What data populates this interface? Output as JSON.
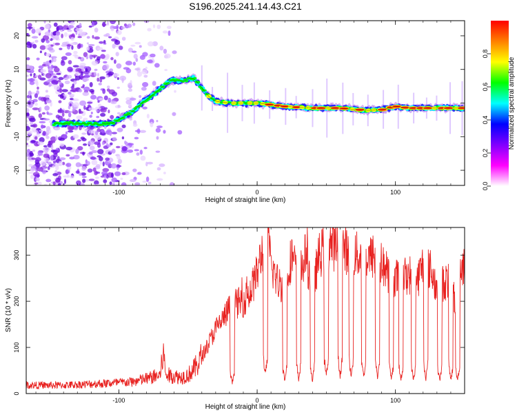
{
  "title": "S196.2025.241.14.43.C21",
  "colors": {
    "snr_line": "#e8211f",
    "spectral_line": "#1a1a1a",
    "background": "#ffffff"
  },
  "chart_data": [
    {
      "type": "heatmap",
      "name": "spectrogram",
      "title": "S196.2025.241.14.43.C21",
      "xlabel": "Height of straight line (km)",
      "ylabel": "Frequency (Hz)",
      "xlim": [
        -167,
        150
      ],
      "ylim": [
        -24.5,
        24.5
      ],
      "xticks": [
        -100,
        0,
        100
      ],
      "yticks": [
        -20,
        -10,
        0,
        10,
        20
      ],
      "ridge": {
        "x": [
          -145,
          -135,
          -125,
          -115,
          -105,
          -98,
          -90,
          -82,
          -75,
          -68,
          -62,
          -55,
          -50,
          -46,
          -40,
          -35,
          -30,
          -20,
          -10,
          0,
          20,
          40,
          60,
          80,
          90,
          100,
          110,
          125,
          140,
          148
        ],
        "y": [
          -6.2,
          -6.0,
          -6.1,
          -6.3,
          -6.0,
          -4.5,
          -2.5,
          0.5,
          2.5,
          5.0,
          6.8,
          6.5,
          7.0,
          7.5,
          4.5,
          2.0,
          0.5,
          0.0,
          0.0,
          0.0,
          -1.0,
          -1.5,
          -1.5,
          -2.2,
          -2.0,
          -1.0,
          -1.5,
          -1.5,
          -1.5,
          -1.5
        ]
      },
      "colorbar": {
        "label": "Normalized spectral amplitude",
        "range": [
          0,
          1
        ],
        "ticks": [
          0.0,
          0.2,
          0.4,
          0.6,
          0.8
        ],
        "tick_labels": [
          "0.0",
          "0.2",
          "0.4",
          "0.6",
          "0.8"
        ],
        "stops": [
          "#ffffff",
          "#ff00ff",
          "#8000ff",
          "#0000ff",
          "#00ffff",
          "#00ff00",
          "#ffff00",
          "#ff8000",
          "#ff0000"
        ]
      }
    },
    {
      "type": "line",
      "name": "snr",
      "xlabel": "Height of straight line (km)",
      "ylabel": "SNR (10 * v/v)",
      "xlim": [
        -167,
        150
      ],
      "ylim": [
        0,
        360
      ],
      "xticks": [
        -100,
        0,
        100
      ],
      "yticks": [
        0,
        100,
        200,
        300
      ],
      "series": [
        {
          "name": "SNR",
          "x": [
            -167,
            -140,
            -110,
            -90,
            -80,
            -70,
            -68,
            -66,
            -60,
            -55,
            -50,
            -45,
            -40,
            -35,
            -30,
            -25,
            -20,
            -15,
            -10,
            -5,
            0,
            3,
            6,
            8,
            10,
            15,
            20,
            25,
            30,
            35,
            40,
            45,
            50,
            55,
            60,
            65,
            70,
            75,
            80,
            85,
            90,
            95,
            100,
            105,
            110,
            115,
            120,
            125,
            130,
            135,
            140,
            143,
            146,
            150
          ],
          "y": [
            18,
            18,
            22,
            25,
            32,
            40,
            90,
            40,
            38,
            35,
            40,
            55,
            80,
            110,
            140,
            160,
            185,
            195,
            200,
            220,
            260,
            300,
            340,
            330,
            280,
            240,
            235,
            300,
            250,
            300,
            230,
            300,
            320,
            320,
            320,
            310,
            300,
            300,
            290,
            300,
            280,
            260,
            250,
            250,
            260,
            240,
            280,
            270,
            230,
            240,
            250,
            200,
            260,
            290
          ]
        }
      ],
      "dips": [
        -18,
        6,
        20,
        30,
        40,
        50,
        60,
        68,
        77,
        87,
        97,
        104,
        113,
        122,
        132,
        140,
        145
      ]
    }
  ]
}
